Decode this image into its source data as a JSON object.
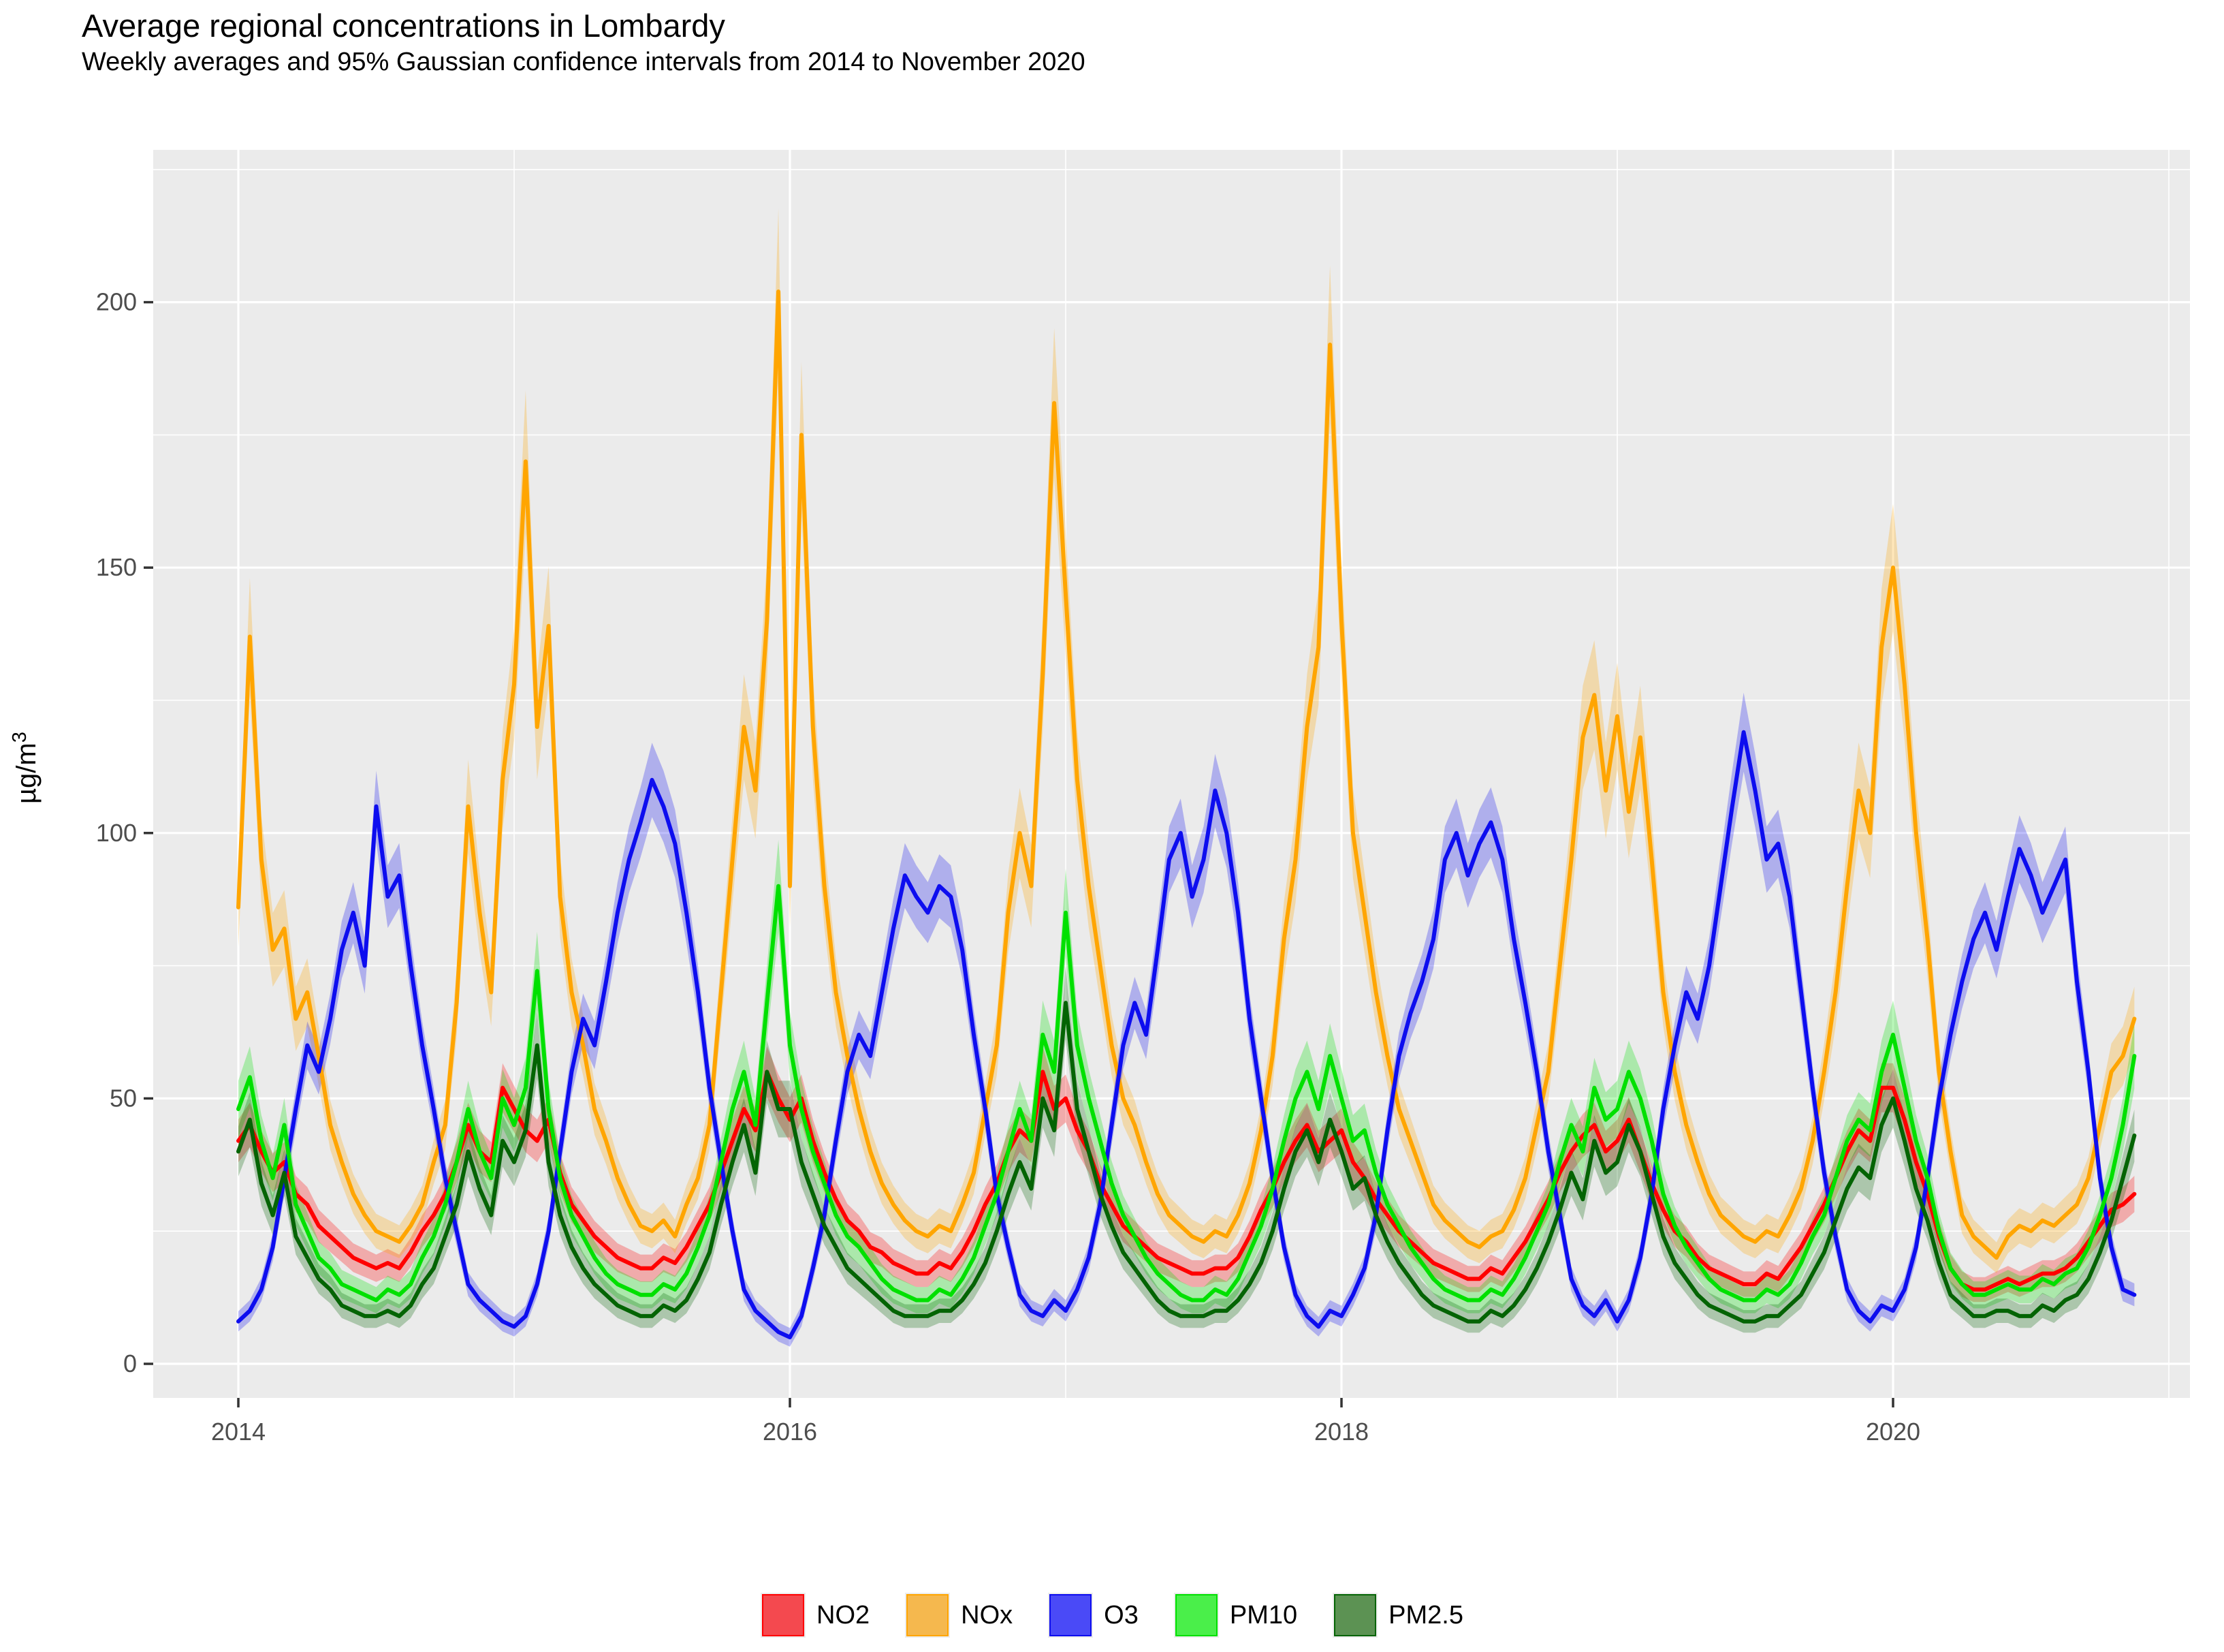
{
  "title": "Average regional concentrations in Lombardy",
  "subtitle": "Weekly averages and 95% Gaussian confidence intervals from 2014 to November 2020",
  "panel": {
    "bg": "#ebebeb",
    "grid_color": "#ffffff",
    "tick_color": "#333333",
    "tick_label_color": "#4d4d4d"
  },
  "y_axis": {
    "label_base": "µg/m",
    "label_exp": "3",
    "ticks": [
      "0",
      "50",
      "100",
      "150",
      "200"
    ],
    "tick_values": [
      0,
      50,
      100,
      150,
      200
    ],
    "minor_values": [
      25,
      75,
      125,
      175,
      225
    ]
  },
  "x_axis": {
    "ticks": [
      "2014",
      "2016",
      "2018",
      "2020"
    ],
    "tick_values": [
      2014,
      2016,
      2018,
      2020
    ],
    "minor_values": [
      2015,
      2017,
      2019,
      2021
    ]
  },
  "legend": {
    "items": [
      {
        "label": "NO2",
        "swatch": "#f4494f",
        "border": "#ff0000"
      },
      {
        "label": "NOx",
        "swatch": "#f5b84e",
        "border": "#ffa500"
      },
      {
        "label": "O3",
        "swatch": "#4a4af7",
        "border": "#0d0def"
      },
      {
        "label": "PM10",
        "swatch": "#4aef4a",
        "border": "#00e000"
      },
      {
        "label": "PM2.5",
        "swatch": "#5c9253",
        "border": "#046404"
      }
    ]
  },
  "chart_data": {
    "type": "line",
    "title": "Average regional concentrations in Lombardy",
    "subtitle": "Weekly averages and 95% Gaussian confidence intervals from 2014 to November 2020",
    "xlabel": "",
    "ylabel": "µg/m³",
    "x_start": 2014.0,
    "x_step_years": 0.0416667,
    "x_end": 2020.875,
    "xlim_shown": [
      2013.69,
      2021.11
    ],
    "ylim_shown": [
      -6.4,
      228.8
    ],
    "grid": "on",
    "legend_position": "bottom",
    "ribbon": "95% Gaussian confidence interval",
    "series": [
      {
        "name": "NO2",
        "color": "#ff0000",
        "ci_fraction": 0.06,
        "values": [
          42,
          45,
          40,
          36,
          38,
          32,
          30,
          26,
          24,
          22,
          20,
          19,
          18,
          19,
          18,
          21,
          25,
          28,
          32,
          38,
          45,
          40,
          38,
          52,
          48,
          44,
          42,
          46,
          36,
          30,
          27,
          24,
          22,
          20,
          19,
          18,
          18,
          20,
          19,
          22,
          26,
          30,
          36,
          42,
          48,
          44,
          55,
          50,
          46,
          50,
          42,
          36,
          31,
          27,
          25,
          22,
          21,
          19,
          18,
          17,
          17,
          19,
          18,
          21,
          25,
          30,
          34,
          40,
          44,
          42,
          55,
          48,
          50,
          44,
          40,
          34,
          30,
          26,
          24,
          22,
          20,
          19,
          18,
          17,
          17,
          18,
          18,
          20,
          24,
          29,
          33,
          38,
          42,
          45,
          40,
          42,
          44,
          38,
          35,
          31,
          28,
          25,
          23,
          21,
          19,
          18,
          17,
          16,
          16,
          18,
          17,
          20,
          23,
          27,
          31,
          36,
          40,
          43,
          45,
          40,
          42,
          46,
          40,
          34,
          29,
          25,
          23,
          20,
          18,
          17,
          16,
          15,
          15,
          17,
          16,
          19,
          22,
          26,
          30,
          35,
          40,
          44,
          42,
          52,
          52,
          46,
          38,
          32,
          24,
          18,
          15,
          14,
          14,
          15,
          16,
          15,
          16,
          17,
          17,
          18,
          20,
          23,
          26,
          29,
          30,
          32
        ]
      },
      {
        "name": "NOx",
        "color": "#ffa500",
        "ci_fraction": 0.07,
        "values": [
          86,
          137,
          95,
          78,
          82,
          65,
          70,
          58,
          45,
          38,
          32,
          28,
          25,
          24,
          23,
          26,
          30,
          38,
          45,
          68,
          105,
          85,
          70,
          110,
          128,
          170,
          120,
          139,
          88,
          70,
          60,
          48,
          42,
          35,
          30,
          26,
          25,
          27,
          24,
          30,
          35,
          45,
          70,
          95,
          120,
          108,
          140,
          202,
          90,
          175,
          120,
          90,
          70,
          58,
          48,
          40,
          34,
          30,
          27,
          25,
          24,
          26,
          25,
          30,
          36,
          48,
          60,
          85,
          100,
          90,
          130,
          181,
          145,
          110,
          90,
          75,
          60,
          50,
          45,
          38,
          32,
          28,
          26,
          24,
          23,
          25,
          24,
          28,
          34,
          44,
          58,
          80,
          95,
          120,
          135,
          192,
          140,
          100,
          85,
          70,
          58,
          48,
          42,
          36,
          30,
          27,
          25,
          23,
          22,
          24,
          25,
          29,
          35,
          45,
          55,
          75,
          95,
          118,
          126,
          108,
          122,
          104,
          118,
          95,
          70,
          55,
          45,
          38,
          32,
          28,
          26,
          24,
          23,
          25,
          24,
          28,
          33,
          42,
          55,
          70,
          90,
          108,
          100,
          135,
          150,
          128,
          100,
          80,
          55,
          40,
          28,
          24,
          22,
          20,
          24,
          26,
          25,
          27,
          26,
          28,
          30,
          35,
          45,
          55,
          58,
          65
        ]
      },
      {
        "name": "O3",
        "color": "#0d0def",
        "ci_fraction": 0.05,
        "values": [
          8,
          10,
          14,
          22,
          35,
          48,
          60,
          55,
          65,
          78,
          85,
          75,
          105,
          88,
          92,
          75,
          60,
          48,
          35,
          25,
          15,
          12,
          10,
          8,
          7,
          9,
          15,
          25,
          40,
          55,
          65,
          60,
          72,
          85,
          95,
          102,
          110,
          105,
          98,
          85,
          70,
          52,
          38,
          25,
          14,
          10,
          8,
          6,
          5,
          9,
          18,
          28,
          42,
          55,
          62,
          58,
          70,
          82,
          92,
          88,
          85,
          90,
          88,
          78,
          62,
          48,
          32,
          22,
          13,
          10,
          9,
          12,
          10,
          14,
          20,
          30,
          45,
          60,
          68,
          62,
          78,
          95,
          100,
          88,
          95,
          108,
          100,
          85,
          65,
          50,
          35,
          22,
          13,
          9,
          7,
          10,
          9,
          13,
          18,
          28,
          44,
          58,
          66,
          72,
          80,
          95,
          100,
          92,
          98,
          102,
          95,
          80,
          68,
          55,
          40,
          28,
          16,
          11,
          9,
          12,
          8,
          12,
          20,
          32,
          48,
          60,
          70,
          65,
          75,
          90,
          105,
          119,
          108,
          95,
          98,
          88,
          70,
          52,
          36,
          24,
          14,
          10,
          8,
          11,
          10,
          14,
          22,
          35,
          50,
          62,
          72,
          80,
          85,
          78,
          88,
          97,
          92,
          85,
          90,
          95,
          72,
          55,
          35,
          22,
          14,
          13
        ]
      },
      {
        "name": "PM10",
        "color": "#00e000",
        "ci_fraction": 0.08,
        "values": [
          48,
          54,
          42,
          35,
          45,
          30,
          25,
          20,
          18,
          15,
          14,
          13,
          12,
          14,
          13,
          15,
          20,
          24,
          30,
          38,
          48,
          40,
          35,
          50,
          45,
          52,
          74,
          48,
          35,
          28,
          24,
          20,
          17,
          15,
          14,
          13,
          13,
          15,
          14,
          17,
          22,
          28,
          38,
          48,
          55,
          45,
          68,
          90,
          60,
          48,
          40,
          34,
          28,
          24,
          22,
          19,
          16,
          14,
          13,
          12,
          12,
          14,
          13,
          16,
          20,
          26,
          32,
          40,
          48,
          42,
          62,
          55,
          85,
          60,
          50,
          42,
          34,
          28,
          24,
          20,
          17,
          15,
          13,
          12,
          12,
          14,
          13,
          16,
          21,
          26,
          33,
          42,
          50,
          55,
          48,
          58,
          50,
          42,
          44,
          36,
          30,
          26,
          22,
          19,
          16,
          14,
          13,
          12,
          12,
          14,
          13,
          16,
          20,
          25,
          30,
          38,
          45,
          40,
          52,
          46,
          48,
          55,
          50,
          42,
          32,
          26,
          22,
          19,
          16,
          14,
          13,
          12,
          12,
          14,
          13,
          15,
          19,
          24,
          28,
          35,
          42,
          46,
          44,
          55,
          62,
          52,
          42,
          35,
          25,
          18,
          15,
          13,
          13,
          14,
          15,
          14,
          14,
          16,
          15,
          17,
          18,
          22,
          28,
          35,
          45,
          58
        ]
      },
      {
        "name": "PM2.5",
        "color": "#046404",
        "ci_fraction": 0.08,
        "values": [
          40,
          46,
          34,
          28,
          36,
          24,
          20,
          16,
          14,
          11,
          10,
          9,
          9,
          10,
          9,
          11,
          15,
          18,
          24,
          30,
          40,
          33,
          28,
          42,
          38,
          44,
          60,
          38,
          28,
          22,
          18,
          15,
          13,
          11,
          10,
          9,
          9,
          11,
          10,
          12,
          16,
          21,
          30,
          38,
          45,
          36,
          55,
          48,
          48,
          38,
          32,
          26,
          22,
          18,
          16,
          14,
          12,
          10,
          9,
          9,
          9,
          10,
          10,
          12,
          15,
          19,
          25,
          32,
          38,
          33,
          50,
          44,
          68,
          48,
          40,
          32,
          26,
          21,
          18,
          15,
          12,
          10,
          9,
          9,
          9,
          10,
          10,
          12,
          15,
          19,
          25,
          33,
          40,
          44,
          38,
          46,
          40,
          33,
          35,
          28,
          23,
          19,
          16,
          13,
          11,
          10,
          9,
          8,
          8,
          10,
          9,
          11,
          14,
          18,
          23,
          29,
          36,
          31,
          42,
          36,
          38,
          45,
          40,
          32,
          24,
          19,
          16,
          13,
          11,
          10,
          9,
          8,
          8,
          9,
          9,
          11,
          13,
          17,
          21,
          27,
          33,
          37,
          35,
          45,
          50,
          42,
          33,
          27,
          19,
          13,
          11,
          9,
          9,
          10,
          10,
          9,
          9,
          11,
          10,
          12,
          13,
          16,
          21,
          27,
          35,
          43
        ]
      }
    ]
  }
}
